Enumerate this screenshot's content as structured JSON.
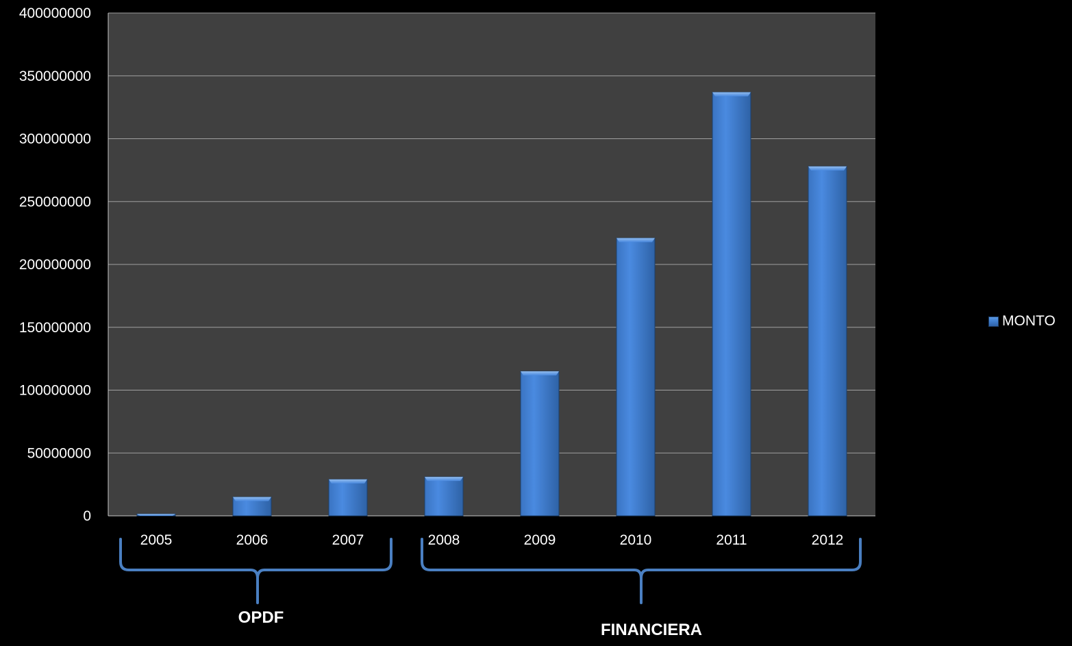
{
  "chart_data": {
    "type": "bar",
    "categories": [
      "2005",
      "2006",
      "2007",
      "2008",
      "2009",
      "2010",
      "2011",
      "2012"
    ],
    "series": [
      {
        "name": "MONTO",
        "values": [
          1500000,
          15000000,
          29000000,
          31000000,
          115000000,
          221000000,
          337000000,
          278000000
        ]
      }
    ],
    "yticks": [
      "0",
      "50000000",
      "100000000",
      "150000000",
      "200000000",
      "250000000",
      "300000000",
      "350000000",
      "400000000"
    ],
    "ylim": [
      0,
      400000000
    ],
    "grid": true,
    "legend_position": "right",
    "groups": [
      {
        "label": "OPDF",
        "categories": [
          "2005",
          "2006",
          "2007"
        ]
      },
      {
        "label": "FINANCIERA",
        "categories": [
          "2008",
          "2009",
          "2010",
          "2011",
          "2012"
        ]
      }
    ],
    "colors": {
      "background": "#000000",
      "plot_area": "#404040",
      "bar": "#3f7fd0",
      "gridline": "#a0a0a0",
      "bracket": "#4a7fc1",
      "text": "#ffffff"
    }
  }
}
